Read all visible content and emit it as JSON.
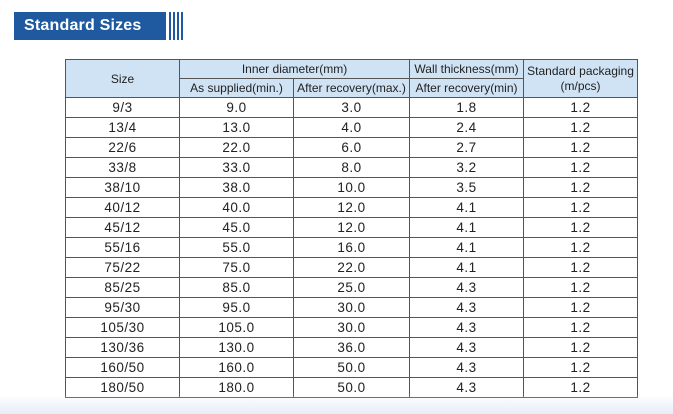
{
  "banner": {
    "title": "Standard Sizes"
  },
  "table": {
    "headers": {
      "size": "Size",
      "inner_diameter": "Inner diameter(mm)",
      "as_supplied": "As supplied(min.)",
      "after_recovery_max": "After recovery(max.)",
      "wall_thickness": "Wall thickness(mm)",
      "after_recovery_min": "After recovery(min)",
      "packaging_line1": "Standard packaging",
      "packaging_line2": "(m/pcs)"
    },
    "rows": [
      [
        "9/3",
        "9.0",
        "3.0",
        "1.8",
        "1.2"
      ],
      [
        "13/4",
        "13.0",
        "4.0",
        "2.4",
        "1.2"
      ],
      [
        "22/6",
        "22.0",
        "6.0",
        "2.7",
        "1.2"
      ],
      [
        "33/8",
        "33.0",
        "8.0",
        "3.2",
        "1.2"
      ],
      [
        "38/10",
        "38.0",
        "10.0",
        "3.5",
        "1.2"
      ],
      [
        "40/12",
        "40.0",
        "12.0",
        "4.1",
        "1.2"
      ],
      [
        "45/12",
        "45.0",
        "12.0",
        "4.1",
        "1.2"
      ],
      [
        "55/16",
        "55.0",
        "16.0",
        "4.1",
        "1.2"
      ],
      [
        "75/22",
        "75.0",
        "22.0",
        "4.1",
        "1.2"
      ],
      [
        "85/25",
        "85.0",
        "25.0",
        "4.3",
        "1.2"
      ],
      [
        "95/30",
        "95.0",
        "30.0",
        "4.3",
        "1.2"
      ],
      [
        "105/30",
        "105.0",
        "30.0",
        "4.3",
        "1.2"
      ],
      [
        "130/36",
        "130.0",
        "36.0",
        "4.3",
        "1.2"
      ],
      [
        "160/50",
        "160.0",
        "50.0",
        "4.3",
        "1.2"
      ],
      [
        "180/50",
        "180.0",
        "50.0",
        "4.3",
        "1.2"
      ]
    ]
  },
  "colors": {
    "banner": "#1f5aa0",
    "header_bg": "#cfe3f4",
    "border": "#555555"
  }
}
